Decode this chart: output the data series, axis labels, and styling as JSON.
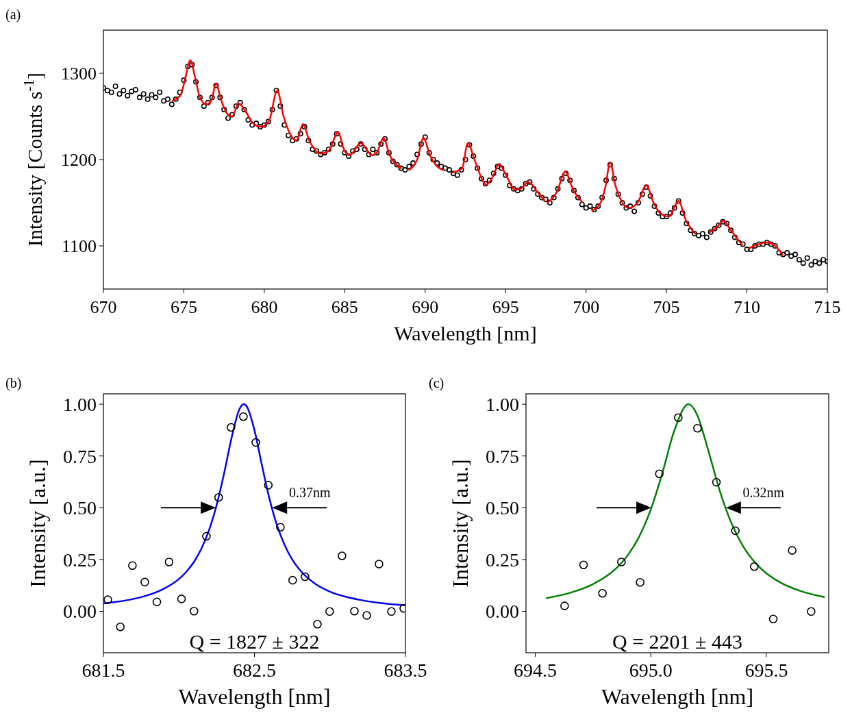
{
  "chart_data": [
    {
      "type": "scatter",
      "title": "(a)",
      "xlabel": "Wavelength [nm]",
      "ylabel": "Intensity [Counts s$^{-1}$]",
      "xlim": [
        670,
        715
      ],
      "ylim": [
        1050,
        1350
      ],
      "xticks": [
        670,
        675,
        680,
        685,
        690,
        695,
        700,
        705,
        710,
        715
      ],
      "yticks": [
        1100,
        1200,
        1300
      ],
      "series": [
        {
          "marker": "circle",
          "color": "#000000",
          "x": [
            670.0,
            670.25,
            670.5,
            670.75,
            671.0,
            671.25,
            671.5,
            671.75,
            672.0,
            672.25,
            672.5,
            672.75,
            673.0,
            673.25,
            673.5,
            673.75,
            674.0,
            674.25,
            674.5,
            674.75,
            675.0,
            675.25,
            675.5,
            675.75,
            676.0,
            676.25,
            676.5,
            676.75,
            677.0,
            677.25,
            677.5,
            677.75,
            678.0,
            678.25,
            678.5,
            678.75,
            679.0,
            679.25,
            679.5,
            679.75,
            680.0,
            680.25,
            680.5,
            680.75,
            681.0,
            681.25,
            681.5,
            681.75,
            682.0,
            682.25,
            682.5,
            682.75,
            683.0,
            683.25,
            683.5,
            683.75,
            684.0,
            684.25,
            684.5,
            684.75,
            685.0,
            685.25,
            685.5,
            685.75,
            686.0,
            686.25,
            686.5,
            686.75,
            687.0,
            687.25,
            687.5,
            687.75,
            688.0,
            688.25,
            688.5,
            688.75,
            689.0,
            689.25,
            689.5,
            689.75,
            690.0,
            690.25,
            690.5,
            690.75,
            691.0,
            691.25,
            691.5,
            691.75,
            692.0,
            692.25,
            692.5,
            692.75,
            693.0,
            693.25,
            693.5,
            693.75,
            694.0,
            694.25,
            694.5,
            694.75,
            695.0,
            695.25,
            695.5,
            695.75,
            696.0,
            696.25,
            696.5,
            696.75,
            697.0,
            697.25,
            697.5,
            697.75,
            698.0,
            698.25,
            698.5,
            698.75,
            699.0,
            699.25,
            699.5,
            699.75,
            700.0,
            700.25,
            700.5,
            700.75,
            701.0,
            701.25,
            701.5,
            701.75,
            702.0,
            702.25,
            702.5,
            702.75,
            703.0,
            703.25,
            703.5,
            703.75,
            704.0,
            704.25,
            704.5,
            704.75,
            705.0,
            705.25,
            705.5,
            705.75,
            706.0,
            706.25,
            706.5,
            706.75,
            707.0,
            707.25,
            707.5,
            707.75,
            708.0,
            708.25,
            708.5,
            708.75,
            709.0,
            709.25,
            709.5,
            709.75,
            710.0,
            710.25,
            710.5,
            710.75,
            711.0,
            711.25,
            711.5,
            711.75,
            712.0,
            712.25,
            712.5,
            712.75,
            713.0,
            713.25,
            713.5,
            713.75,
            714.0,
            714.25,
            714.5,
            714.75,
            715.0
          ],
          "values": [
            1283,
            1280,
            1278,
            1285,
            1276,
            1280,
            1274,
            1279,
            1281,
            1272,
            1276,
            1270,
            1275,
            1272,
            1278,
            1268,
            1270,
            1264,
            1270,
            1278,
            1292,
            1308,
            1310,
            1290,
            1272,
            1262,
            1266,
            1272,
            1286,
            1272,
            1258,
            1248,
            1252,
            1262,
            1266,
            1258,
            1246,
            1240,
            1242,
            1238,
            1240,
            1244,
            1258,
            1280,
            1262,
            1240,
            1228,
            1222,
            1224,
            1230,
            1238,
            1222,
            1212,
            1210,
            1206,
            1208,
            1212,
            1218,
            1230,
            1218,
            1208,
            1204,
            1210,
            1212,
            1218,
            1212,
            1206,
            1212,
            1208,
            1218,
            1224,
            1208,
            1198,
            1194,
            1190,
            1188,
            1192,
            1196,
            1206,
            1218,
            1226,
            1208,
            1200,
            1196,
            1192,
            1190,
            1188,
            1184,
            1182,
            1188,
            1200,
            1217,
            1204,
            1190,
            1178,
            1172,
            1176,
            1184,
            1192,
            1190,
            1182,
            1170,
            1166,
            1164,
            1166,
            1172,
            1174,
            1166,
            1160,
            1156,
            1154,
            1150,
            1156,
            1166,
            1178,
            1184,
            1176,
            1164,
            1156,
            1148,
            1144,
            1146,
            1142,
            1146,
            1156,
            1176,
            1194,
            1178,
            1160,
            1150,
            1144,
            1146,
            1140,
            1150,
            1160,
            1168,
            1158,
            1146,
            1138,
            1134,
            1134,
            1138,
            1144,
            1152,
            1138,
            1126,
            1118,
            1114,
            1112,
            1114,
            1110,
            1116,
            1120,
            1124,
            1128,
            1126,
            1118,
            1110,
            1104,
            1102,
            1096,
            1096,
            1100,
            1102,
            1102,
            1104,
            1102,
            1100,
            1092,
            1090,
            1092,
            1088,
            1090,
            1084,
            1080,
            1086,
            1078,
            1082,
            1080,
            1084,
            1082
          ]
        },
        {
          "type": "line",
          "marker": "none",
          "color": "#ff0000",
          "x": [
            674.3,
            674.8,
            675.1,
            675.4,
            675.7,
            676.0,
            676.4,
            676.7,
            677.0,
            677.3,
            677.7,
            678.0,
            678.4,
            678.8,
            679.3,
            679.8,
            680.3,
            680.8,
            681.2,
            681.6,
            682.0,
            682.4,
            682.8,
            683.5,
            684.0,
            684.6,
            684.9,
            685.3,
            686.0,
            686.7,
            687.0,
            687.4,
            687.8,
            688.5,
            688.7,
            689.0,
            689.5,
            689.9,
            690.3,
            690.7,
            691.1,
            691.4,
            691.7,
            692.3,
            692.65,
            693.1,
            693.8,
            694.2,
            694.6,
            695.0,
            695.6,
            696.0,
            696.4,
            697.0,
            697.4,
            697.5,
            697.6,
            698.2,
            698.7,
            699.2,
            699.75,
            700.0,
            700.4,
            700.9,
            701.2,
            701.5,
            701.8,
            702.2,
            702.65,
            703.2,
            703.75,
            704.2,
            704.6,
            705.15,
            705.75,
            706.2,
            706.8,
            707.2,
            707.7,
            708.1,
            708.55,
            709.0,
            709.7,
            709.9,
            710.1,
            710.6,
            711.2,
            711.7,
            712.2
          ],
          "values": [
            1268,
            1275,
            1295,
            1315,
            1295,
            1272,
            1264,
            1268,
            1288,
            1270,
            1253,
            1250,
            1265,
            1257,
            1242,
            1238,
            1245,
            1280,
            1250,
            1230,
            1222,
            1241,
            1222,
            1207,
            1210,
            1232,
            1214,
            1205,
            1219,
            1205,
            1208,
            1225,
            1205,
            1190,
            null,
            1188,
            1200,
            1225,
            1205,
            1193,
            1188,
            null,
            1185,
            1190,
            1219,
            1198,
            1171,
            1180,
            1195,
            1183,
            1165,
            1167,
            1174,
            1162,
            1153,
            null,
            1150,
            1163,
            1186,
            1165,
            1151,
            null,
            1141,
            1150,
            1168,
            1197,
            1172,
            1152,
            1144,
            1150,
            1170,
            1150,
            1138,
            1134,
            1152,
            1130,
            1114,
            null,
            1116,
            1121,
            1129,
            1118,
            1101,
            null,
            1097,
            1101,
            1104,
            1101,
            1090
          ]
        }
      ]
    },
    {
      "type": "scatter",
      "title": "(b)",
      "xlabel": "Wavelength [nm]",
      "ylabel": "Intensity [a.u.]",
      "xlim": [
        681.5,
        683.5
      ],
      "ylim": [
        -0.2,
        1.05
      ],
      "xticks": [
        681.5,
        682.5,
        683.5
      ],
      "yticks": [
        {
          "value": 0,
          "label": "0.00"
        },
        {
          "value": 0.25,
          "label": "0.25"
        },
        {
          "value": 0.5,
          "label": "0.50"
        },
        {
          "value": 0.75,
          "label": "0.75"
        },
        {
          "value": 1,
          "label": "1.00"
        }
      ],
      "annotations": [
        "0.37nm",
        "Q = 1827 ± 322"
      ],
      "series": [
        {
          "type": "line",
          "marker": "none",
          "color": "#0000ff",
          "x": [
            681.5,
            681.6,
            681.7,
            681.8,
            681.9,
            682.0,
            682.05,
            682.1,
            682.15,
            682.2,
            682.25,
            682.3,
            682.35,
            682.4,
            682.43,
            682.45,
            682.5,
            682.55,
            682.6,
            682.65,
            682.7,
            682.75,
            682.8,
            682.9,
            683.0,
            683.1,
            683.2,
            683.3,
            683.4,
            683.5
          ],
          "values": [
            0.038,
            0.047,
            0.06,
            0.079,
            0.109,
            0.156,
            0.192,
            0.239,
            0.304,
            0.393,
            0.514,
            0.669,
            0.842,
            0.975,
            1.0,
            0.988,
            0.875,
            0.704,
            0.542,
            0.414,
            0.32,
            0.25,
            0.2,
            0.134,
            0.095,
            0.071,
            0.055,
            0.043,
            0.035,
            0.029
          ]
        },
        {
          "marker": "circle",
          "color": "#000000",
          "x": [
            681.529,
            681.612,
            681.692,
            681.774,
            681.854,
            681.935,
            682.017,
            682.1,
            682.182,
            682.263,
            682.345,
            682.427,
            682.509,
            682.592,
            682.672,
            682.753,
            682.835,
            682.917,
            682.998,
            683.08,
            683.162,
            683.244,
            683.325,
            683.407,
            683.489
          ],
          "values": [
            0.056,
            -0.075,
            0.221,
            0.141,
            0.045,
            0.238,
            0.06,
            0.001,
            0.362,
            0.55,
            0.888,
            0.94,
            0.815,
            0.609,
            0.406,
            0.15,
            0.167,
            -0.062,
            -0.001,
            0.268,
            0.001,
            -0.02,
            0.228,
            -0.001,
            0.014
          ]
        }
      ]
    },
    {
      "type": "scatter",
      "title": "(c)",
      "xlabel": "Wavelength [nm]",
      "ylabel": "Intensity [a.u.]",
      "xlim": [
        694.46,
        695.77
      ],
      "ylim": [
        -0.2,
        1.05
      ],
      "xticks": [
        694.5,
        {
          "value": 695,
          "label": "695.0"
        },
        695.5
      ],
      "yticks": [
        {
          "value": 0,
          "label": "0.00"
        },
        {
          "value": 0.25,
          "label": "0.25"
        },
        {
          "value": 0.5,
          "label": "0.50"
        },
        {
          "value": 0.75,
          "label": "0.75"
        },
        {
          "value": 1,
          "label": "1.00"
        }
      ],
      "annotations": [
        "0.32nm",
        "Q = 2201 ± 443"
      ],
      "series": [
        {
          "type": "line",
          "marker": "none",
          "color": "#008000",
          "x": [
            694.55,
            694.65,
            694.75,
            694.85,
            694.9,
            694.95,
            695.0,
            695.05,
            695.1,
            695.163,
            695.2,
            695.25,
            695.3,
            695.35,
            695.4,
            695.45,
            695.55,
            695.65,
            695.75
          ],
          "values": [
            0.064,
            0.089,
            0.131,
            0.207,
            0.27,
            0.361,
            0.491,
            0.667,
            0.866,
            1.0,
            0.95,
            0.772,
            0.577,
            0.423,
            0.313,
            0.237,
            0.146,
            0.097,
            0.069
          ]
        },
        {
          "marker": "circle",
          "color": "#000000",
          "x": [
            694.627,
            694.709,
            694.791,
            694.873,
            694.954,
            695.037,
            695.119,
            695.202,
            695.284,
            695.366,
            695.448,
            695.53,
            695.612,
            695.694
          ],
          "values": [
            0.026,
            0.224,
            0.087,
            0.238,
            0.14,
            0.664,
            0.935,
            0.884,
            0.623,
            0.389,
            0.216,
            -0.037,
            0.294,
            -0.001
          ]
        }
      ]
    }
  ]
}
